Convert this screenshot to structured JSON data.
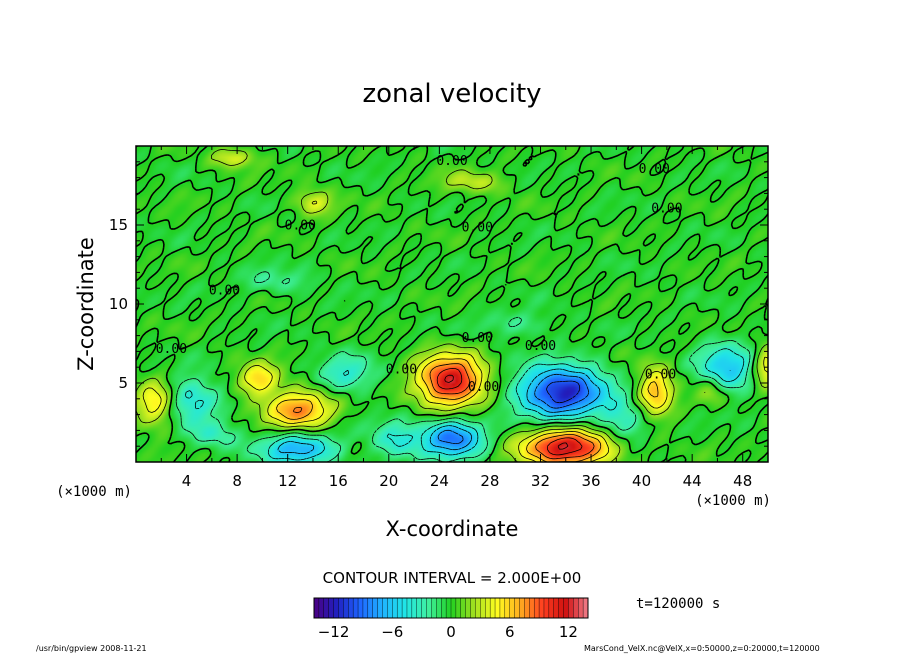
{
  "chart_data": {
    "type": "heatmap",
    "title": "zonal velocity",
    "xlabel": "X-coordinate",
    "ylabel": "Z-coordinate",
    "x_unit_left": "(×1000 m)",
    "x_unit_right": "(×1000 m)",
    "xlim": [
      0,
      50
    ],
    "ylim": [
      0,
      20
    ],
    "x_ticks": [
      4,
      8,
      12,
      16,
      20,
      24,
      28,
      32,
      36,
      40,
      44,
      48
    ],
    "y_ticks": [
      5,
      10,
      15
    ],
    "contour_interval_text": "CONTOUR INTERVAL = 2.000E+00",
    "time_label": "t=120000 s",
    "colorbar": {
      "min": -14,
      "max": 14,
      "ticks": [
        -12,
        -6,
        0,
        6,
        12
      ],
      "colors": [
        "#4b0082",
        "#2020c0",
        "#1e64ff",
        "#20b4ff",
        "#20e6e6",
        "#40f0a0",
        "#20d020",
        "#a0e020",
        "#ffff20",
        "#ffb020",
        "#ff4020",
        "#d01010",
        "#f0808c"
      ]
    },
    "contour_labels": [
      {
        "x": 25,
        "y": 18.8,
        "text": "0.00"
      },
      {
        "x": 41,
        "y": 18.3,
        "text": "0.00"
      },
      {
        "x": 42,
        "y": 15.8,
        "text": "0.00"
      },
      {
        "x": 13,
        "y": 14.7,
        "text": "0.00"
      },
      {
        "x": 27,
        "y": 14.6,
        "text": "0.00"
      },
      {
        "x": 7,
        "y": 10.6,
        "text": "0.00"
      },
      {
        "x": 27,
        "y": 7.6,
        "text": "0.00"
      },
      {
        "x": 2.8,
        "y": 6.9,
        "text": "0.00"
      },
      {
        "x": 21,
        "y": 5.6,
        "text": "0.00"
      },
      {
        "x": 32,
        "y": 7.1,
        "text": "0.00"
      },
      {
        "x": 41.5,
        "y": 5.3,
        "text": "0.00"
      },
      {
        "x": 27.5,
        "y": 4.5,
        "text": "0.00"
      }
    ],
    "features": [
      {
        "x": 24.8,
        "z": 5.2,
        "value": 12,
        "sx": 2.6,
        "sz": 1.6
      },
      {
        "x": 12.8,
        "z": 3.4,
        "value": 8,
        "sx": 2.6,
        "sz": 1.2
      },
      {
        "x": 34.0,
        "z": 1.0,
        "value": 12,
        "sx": 3.5,
        "sz": 1.2
      },
      {
        "x": 9.6,
        "z": 5.3,
        "value": 6,
        "sx": 1.6,
        "sz": 1.0
      },
      {
        "x": 41.0,
        "z": 4.5,
        "value": 7,
        "sx": 1.4,
        "sz": 1.5
      },
      {
        "x": 1.5,
        "z": 3.8,
        "value": 6,
        "sx": 1.6,
        "sz": 1.4
      },
      {
        "x": 49.8,
        "z": 6.0,
        "value": 5,
        "sx": 1.0,
        "sz": 1.5
      },
      {
        "x": 33.6,
        "z": 4.5,
        "value": -12,
        "sx": 3.4,
        "sz": 1.6
      },
      {
        "x": 25.0,
        "z": 1.6,
        "value": -9,
        "sx": 2.4,
        "sz": 1.2
      },
      {
        "x": 12.8,
        "z": 0.9,
        "value": -7,
        "sx": 3.0,
        "sz": 1.0
      },
      {
        "x": 4.2,
        "z": 4.0,
        "value": -5,
        "sx": 2.2,
        "sz": 1.4
      },
      {
        "x": 16.5,
        "z": 5.6,
        "value": -4,
        "sx": 2.2,
        "sz": 1.2
      },
      {
        "x": 46.6,
        "z": 6.0,
        "value": -6,
        "sx": 2.2,
        "sz": 1.6
      },
      {
        "x": 20.5,
        "z": 1.5,
        "value": -4,
        "sx": 2.0,
        "sz": 1.2
      },
      {
        "x": 38.5,
        "z": 2.6,
        "value": -4,
        "sx": 1.8,
        "sz": 1.2
      },
      {
        "x": 14.0,
        "z": 16.5,
        "value": 4,
        "sx": 1.4,
        "sz": 0.8
      },
      {
        "x": 7.5,
        "z": 19.3,
        "value": 4,
        "sx": 1.6,
        "sz": 0.6
      },
      {
        "x": 26.5,
        "z": 17.8,
        "value": 3,
        "sx": 2.5,
        "sz": 0.7
      },
      {
        "x": 45.5,
        "z": 4.5,
        "value": 3,
        "sx": 1.2,
        "sz": 1.0
      },
      {
        "x": 6.0,
        "z": 1.8,
        "value": -3,
        "sx": 2.0,
        "sz": 0.9
      },
      {
        "x": 30.0,
        "z": 8.8,
        "value": -2,
        "sx": 3.0,
        "sz": 0.8
      },
      {
        "x": 11.0,
        "z": 11.5,
        "value": -2,
        "sx": 3.0,
        "sz": 0.8
      }
    ]
  },
  "footer": {
    "left": "/usr/bin/gpview   2008-11-21",
    "right": "MarsCond_VelX.nc@VelX,x=0:50000,z=0:20000,t=120000"
  }
}
